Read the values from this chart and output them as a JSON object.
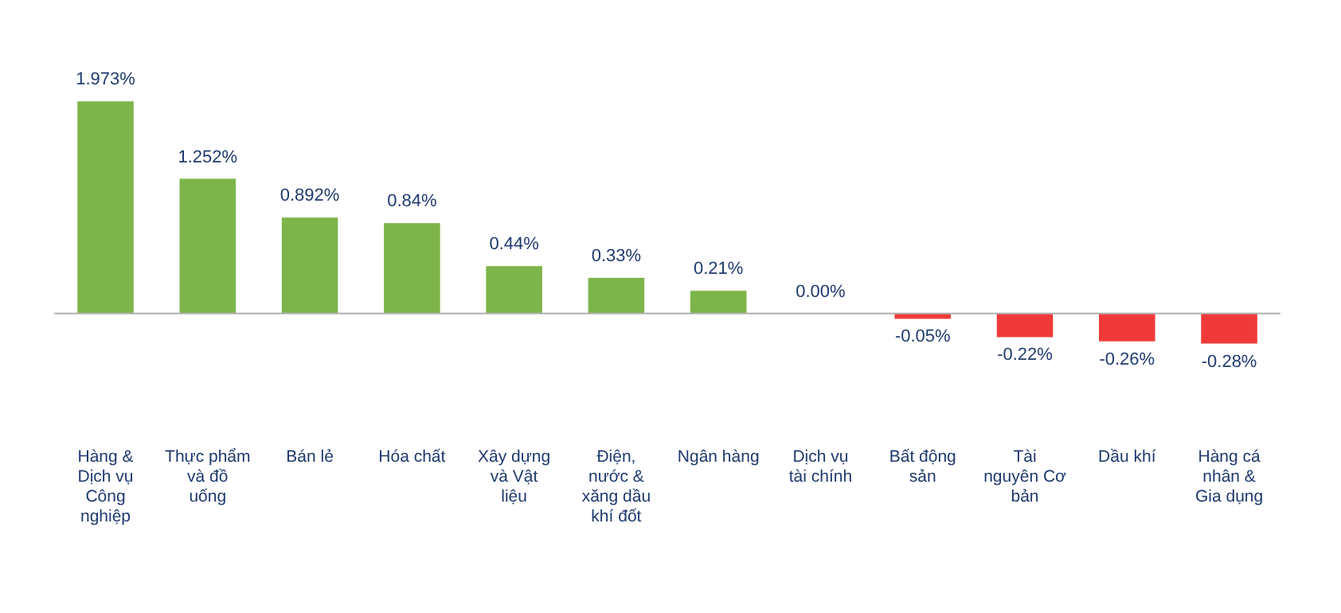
{
  "chart_data": {
    "type": "bar",
    "categories": [
      "Hàng & Dịch vụ Công nghiệp",
      "Thực phẩm và đồ uống",
      "Bán lẻ",
      "Hóa chất",
      "Xây dựng và Vật liệu",
      "Điện, nước & xăng dầu khí đốt",
      "Ngân hàng",
      "Dịch vụ tài chính",
      "Bất động sản",
      "Tài nguyên Cơ bản",
      "Dầu khí",
      "Hàng cá nhân & Gia dụng"
    ],
    "values": [
      1.973,
      1.252,
      0.892,
      0.84,
      0.44,
      0.33,
      0.21,
      0.0,
      -0.05,
      -0.22,
      -0.26,
      -0.28
    ],
    "value_labels": [
      "1.973%",
      "1.252%",
      "0.892%",
      "0.84%",
      "0.44%",
      "0.33%",
      "0.21%",
      "0.00%",
      "-0.05%",
      "-0.22%",
      "-0.26%",
      "-0.28%"
    ],
    "colors": [
      "#7db54a",
      "#7db54a",
      "#7db54a",
      "#7db54a",
      "#7db54a",
      "#7db54a",
      "#7db54a",
      "#7db54a",
      "#f03a3a",
      "#f03a3a",
      "#f03a3a",
      "#f03a3a"
    ],
    "grid": false,
    "legend": false
  }
}
